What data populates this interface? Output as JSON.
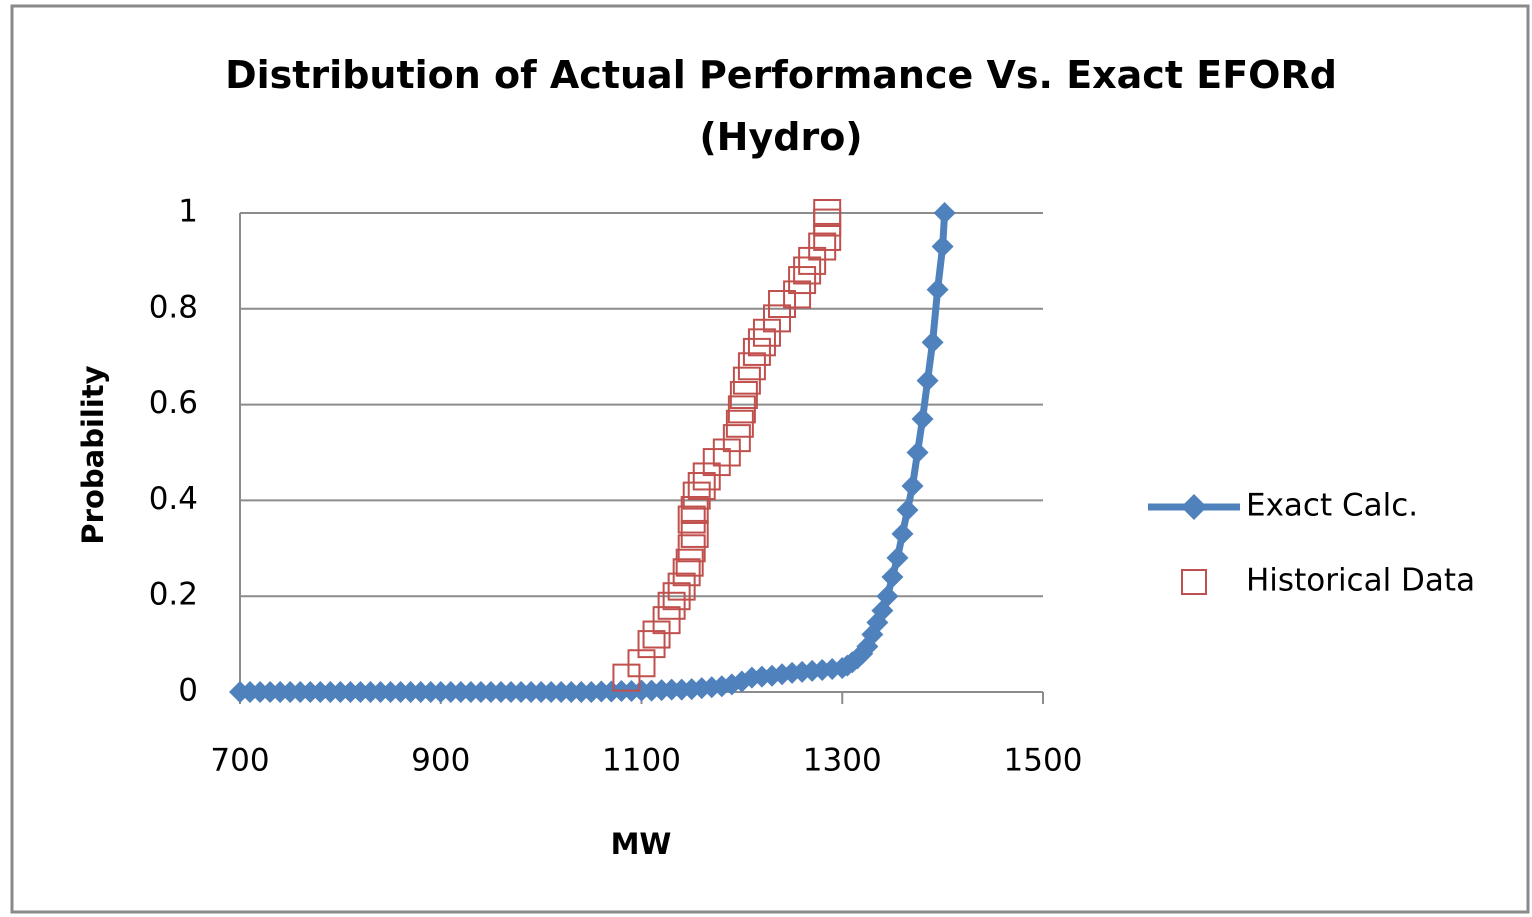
{
  "chart_data": {
    "type": "scatter",
    "title": "Distribution of Actual Performance Vs. Exact EFORd (Hydro)",
    "x_label": "MW",
    "y_label": "Probability",
    "xlim": [
      700,
      1500
    ],
    "xticks": [
      700,
      900,
      1100,
      1300,
      1500
    ],
    "ylim": [
      0,
      1
    ],
    "yticks": [
      0,
      0.2,
      0.4,
      0.6,
      0.8,
      1
    ],
    "grid": true,
    "legend": "right",
    "series": [
      {
        "name": "Exact Calc.",
        "color": "#4f81bd",
        "style": "line-diamond",
        "x": [
          700,
          710,
          720,
          730,
          740,
          750,
          760,
          770,
          780,
          790,
          800,
          810,
          820,
          830,
          840,
          850,
          860,
          870,
          880,
          890,
          900,
          910,
          920,
          930,
          940,
          950,
          960,
          970,
          980,
          990,
          1000,
          1010,
          1020,
          1030,
          1040,
          1050,
          1060,
          1070,
          1080,
          1090,
          1100,
          1110,
          1120,
          1130,
          1140,
          1150,
          1160,
          1170,
          1180,
          1190,
          1200,
          1210,
          1220,
          1230,
          1240,
          1250,
          1260,
          1270,
          1280,
          1290,
          1300,
          1305,
          1310,
          1315,
          1320,
          1325,
          1330,
          1335,
          1340,
          1345,
          1350,
          1355,
          1360,
          1365,
          1370,
          1375,
          1380,
          1385,
          1390,
          1395,
          1400,
          1402
        ],
        "values": [
          0,
          0,
          0,
          0,
          0,
          0,
          0,
          0,
          0,
          0,
          0,
          0,
          0,
          0,
          0,
          0,
          0,
          0,
          0,
          0,
          0,
          0,
          0,
          0,
          0,
          0,
          0,
          0,
          0,
          0,
          0,
          0,
          0,
          0,
          0,
          0,
          0.001,
          0.001,
          0.002,
          0.002,
          0.003,
          0.003,
          0.004,
          0.005,
          0.005,
          0.006,
          0.008,
          0.01,
          0.012,
          0.016,
          0.022,
          0.03,
          0.032,
          0.034,
          0.037,
          0.04,
          0.042,
          0.044,
          0.046,
          0.048,
          0.05,
          0.055,
          0.062,
          0.07,
          0.08,
          0.095,
          0.12,
          0.145,
          0.17,
          0.2,
          0.24,
          0.28,
          0.33,
          0.38,
          0.43,
          0.5,
          0.57,
          0.65,
          0.73,
          0.84,
          0.93,
          1.0
        ]
      },
      {
        "name": "Historical Data",
        "color": "#c0504d",
        "style": "hollow-square",
        "x": [
          1085,
          1100,
          1110,
          1115,
          1125,
          1130,
          1135,
          1140,
          1145,
          1148,
          1150,
          1153,
          1150,
          1153,
          1155,
          1160,
          1165,
          1175,
          1185,
          1195,
          1198,
          1200,
          1202,
          1205,
          1210,
          1215,
          1220,
          1225,
          1235,
          1240,
          1255,
          1260,
          1265,
          1270,
          1280,
          1285,
          1285,
          1285
        ],
        "values": [
          0.03,
          0.06,
          0.1,
          0.12,
          0.15,
          0.18,
          0.2,
          0.22,
          0.25,
          0.27,
          0.3,
          0.33,
          0.36,
          0.38,
          0.41,
          0.43,
          0.45,
          0.48,
          0.5,
          0.53,
          0.56,
          0.59,
          0.62,
          0.65,
          0.68,
          0.71,
          0.73,
          0.75,
          0.78,
          0.81,
          0.83,
          0.86,
          0.88,
          0.9,
          0.93,
          0.95,
          0.98,
          1.0
        ]
      }
    ]
  }
}
